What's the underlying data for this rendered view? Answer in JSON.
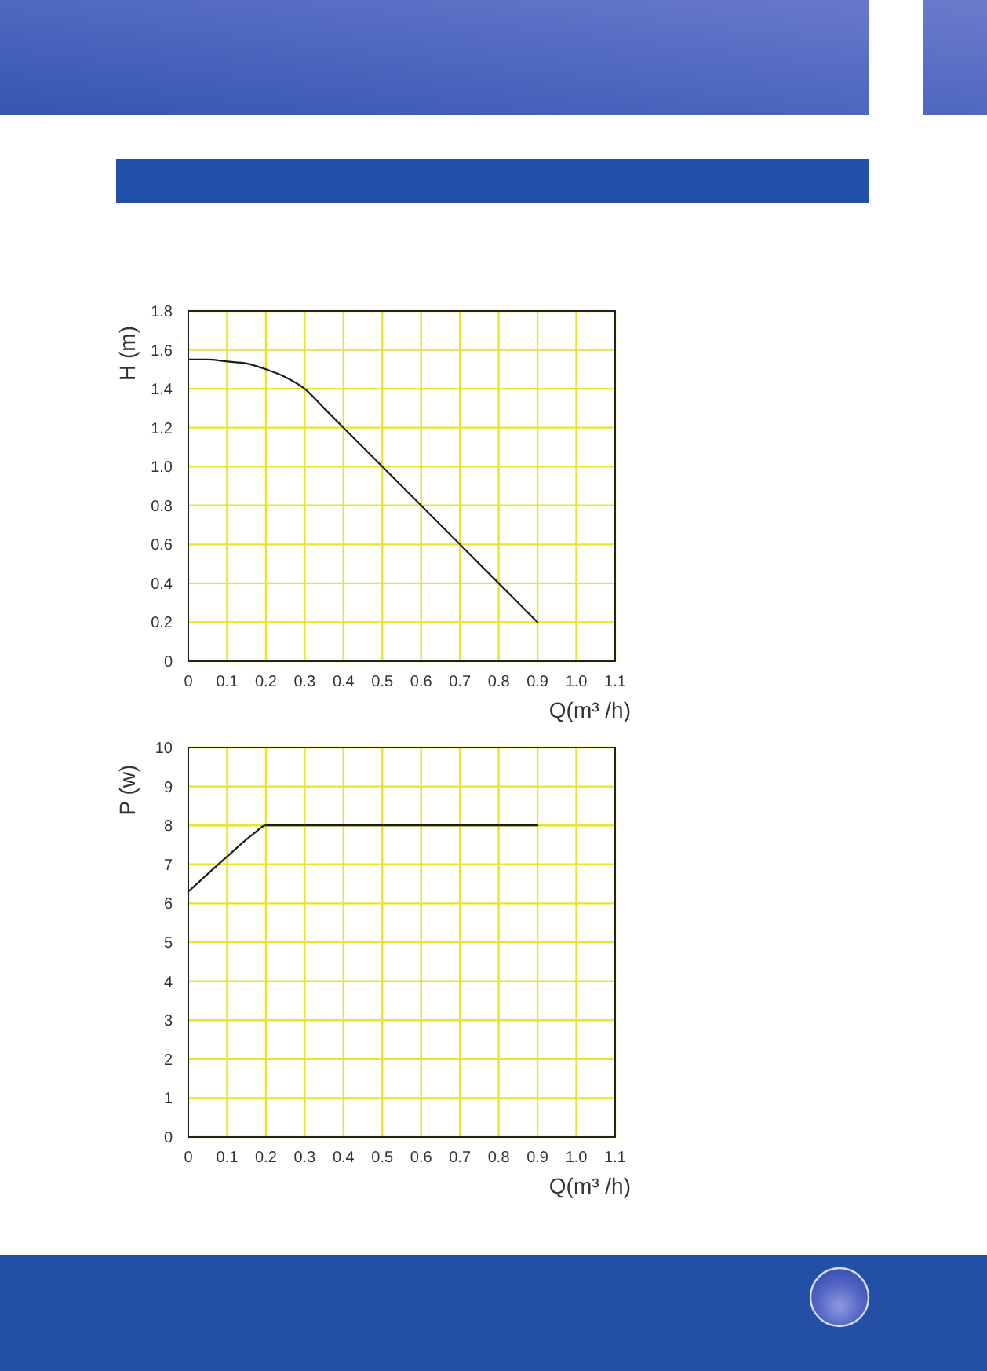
{
  "chart_data": [
    {
      "type": "line",
      "xlabel": "Q(m³ /h)",
      "ylabel": "H (m)",
      "x": [
        0,
        0.05,
        0.1,
        0.15,
        0.2,
        0.25,
        0.3,
        0.35,
        0.4,
        0.5,
        0.6,
        0.7,
        0.8,
        0.9
      ],
      "values": [
        1.55,
        1.55,
        1.54,
        1.53,
        1.5,
        1.46,
        1.4,
        1.3,
        1.2,
        1.0,
        0.8,
        0.6,
        0.4,
        0.2
      ],
      "color": "#1a1a1a",
      "xlim": [
        0,
        1.1
      ],
      "ylim": [
        0,
        1.8
      ],
      "xticks": [
        0,
        0.1,
        0.2,
        0.3,
        0.4,
        0.5,
        0.6,
        0.7,
        0.8,
        0.9,
        {
          "value": 1,
          "label": "1.0"
        },
        1.1
      ],
      "yticks": [
        0,
        0.2,
        0.4,
        0.6,
        0.8,
        {
          "value": 1,
          "label": "1.0"
        },
        1.2,
        1.4,
        1.6,
        1.8
      ],
      "grid": true
    },
    {
      "type": "line",
      "xlabel": "Q(m³ /h)",
      "ylabel": "P (w)",
      "x": [
        0,
        0.1,
        0.17,
        0.2,
        0.9
      ],
      "values": [
        6.3,
        7.2,
        7.8,
        8,
        8
      ],
      "color": "#1a1a1a",
      "xlim": [
        0,
        1.1
      ],
      "ylim": [
        0,
        10
      ],
      "xticks": [
        0,
        0.1,
        0.2,
        0.3,
        0.4,
        0.5,
        0.6,
        0.7,
        0.8,
        0.9,
        {
          "value": 1,
          "label": "1.0"
        },
        1.1
      ],
      "yticks": [
        0,
        1,
        2,
        3,
        4,
        5,
        6,
        7,
        8,
        9,
        10
      ],
      "grid": true
    }
  ]
}
